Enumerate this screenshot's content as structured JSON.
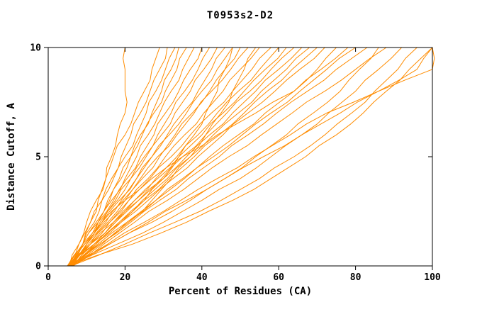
{
  "figure": {
    "background": "#ffffff",
    "line_color": "#ff8c00",
    "axis_color": "#000000"
  },
  "chart_data": {
    "type": "line",
    "title": "T0953s2-D2",
    "xlabel": "Percent of Residues (CA)",
    "ylabel": "Distance Cutoff, A",
    "xlim": [
      0,
      100
    ],
    "ylim": [
      0,
      10
    ],
    "x_ticks": [
      0,
      20,
      40,
      60,
      80,
      100
    ],
    "y_ticks": [
      0,
      5,
      10
    ],
    "grid": false,
    "legend": "none",
    "series_y": [
      0,
      1,
      2,
      3,
      4,
      5,
      6,
      7,
      8,
      9,
      10
    ],
    "series": [
      [
        6,
        9,
        11,
        13,
        15,
        16.5,
        18,
        20,
        20,
        20,
        20
      ],
      [
        5.5,
        8,
        10,
        12.5,
        15,
        17,
        20,
        22.5,
        25,
        27,
        29
      ],
      [
        6,
        9,
        12,
        14,
        16.5,
        19,
        21.5,
        24,
        26.5,
        29,
        31
      ],
      [
        5,
        8,
        11,
        14,
        17,
        20,
        23,
        25.5,
        28,
        30.5,
        33
      ],
      [
        6.5,
        10,
        13,
        16,
        19,
        21.5,
        24,
        27,
        29.5,
        32,
        34
      ],
      [
        5.5,
        9,
        12.5,
        15.5,
        18.5,
        21.5,
        24.5,
        27.5,
        30.5,
        33.5,
        36
      ],
      [
        6,
        9.5,
        13,
        16.5,
        20,
        23,
        26,
        29,
        32,
        35,
        38
      ],
      [
        5,
        9,
        13,
        17,
        20.5,
        24,
        27.5,
        30.5,
        34,
        37,
        40
      ],
      [
        6.5,
        10,
        14,
        18,
        21.5,
        25,
        28.5,
        32,
        35.5,
        39,
        42
      ],
      [
        5.5,
        9.5,
        13.5,
        17.5,
        21.5,
        25.5,
        29.5,
        33,
        37,
        40.5,
        44
      ],
      [
        6,
        10,
        14.5,
        19,
        23,
        27,
        31,
        35,
        39,
        42.5,
        46
      ],
      [
        5,
        9.5,
        14,
        18.5,
        23,
        27,
        31.5,
        36,
        40,
        44,
        48
      ],
      [
        6.5,
        11,
        15.5,
        20,
        24.5,
        29,
        33,
        37.5,
        42,
        46,
        50
      ],
      [
        5.5,
        10,
        15,
        19.5,
        24,
        28.5,
        33.5,
        38,
        42.5,
        47.5,
        52
      ],
      [
        6,
        11,
        16,
        21,
        26,
        30.5,
        35.5,
        40.5,
        45.5,
        50,
        55
      ],
      [
        5,
        10.5,
        16,
        21,
        26.5,
        32,
        37,
        42.5,
        48,
        53,
        58
      ],
      [
        6.5,
        12,
        17,
        22.5,
        28,
        33.5,
        39,
        44,
        49.5,
        55,
        60
      ],
      [
        5.5,
        11,
        17,
        22.5,
        28.5,
        34,
        40,
        45.5,
        51,
        56.5,
        62
      ],
      [
        6,
        12,
        17.5,
        23.5,
        29.5,
        35,
        41,
        46.5,
        52.5,
        58,
        64
      ],
      [
        5,
        11,
        17.5,
        23.5,
        30,
        36,
        42,
        48,
        54,
        60,
        66
      ],
      [
        6.5,
        12.5,
        18.5,
        24.5,
        31,
        37,
        43,
        49.5,
        55.5,
        62,
        68
      ],
      [
        5.5,
        12,
        18.5,
        25,
        31.5,
        38,
        44.5,
        51,
        57,
        63.5,
        70
      ],
      [
        6,
        12.5,
        19,
        26,
        32.5,
        39,
        45.5,
        52,
        59,
        65.5,
        72
      ],
      [
        5,
        9,
        14,
        20,
        27,
        35,
        44,
        54,
        64,
        70,
        75
      ],
      [
        6.5,
        13.5,
        20.5,
        28,
        35,
        42,
        49.5,
        56.5,
        64,
        71,
        78
      ],
      [
        5.5,
        13,
        20.5,
        28,
        35.5,
        43,
        50.5,
        58,
        65.5,
        72.5,
        80
      ],
      [
        6,
        13.5,
        21.5,
        29,
        36.5,
        44.5,
        52,
        59.5,
        67.5,
        75,
        83
      ],
      [
        5,
        16,
        27,
        37,
        46,
        54,
        62,
        69,
        76,
        81,
        86
      ],
      [
        6.5,
        14.5,
        22.5,
        31,
        39,
        47,
        55.5,
        63.5,
        72,
        80,
        88
      ],
      [
        5.5,
        18,
        30,
        40,
        50,
        58,
        66,
        73,
        80,
        86,
        92
      ],
      [
        6,
        20,
        33,
        45,
        55,
        64,
        72,
        79,
        85,
        91,
        96
      ],
      [
        5,
        22,
        36,
        48,
        58,
        67,
        75,
        82,
        88,
        94,
        100
      ],
      [
        6,
        15.5,
        25,
        34.5,
        44,
        53.5,
        63,
        72.5,
        86,
        100,
        100
      ],
      [
        5.5,
        16,
        26,
        36,
        46,
        56,
        66,
        76,
        86,
        96,
        100
      ],
      [
        5,
        12,
        19,
        25,
        30,
        34,
        38,
        41,
        44,
        46,
        48
      ],
      [
        6,
        14,
        21,
        27,
        32,
        37,
        41,
        45,
        48,
        51,
        54
      ]
    ]
  }
}
